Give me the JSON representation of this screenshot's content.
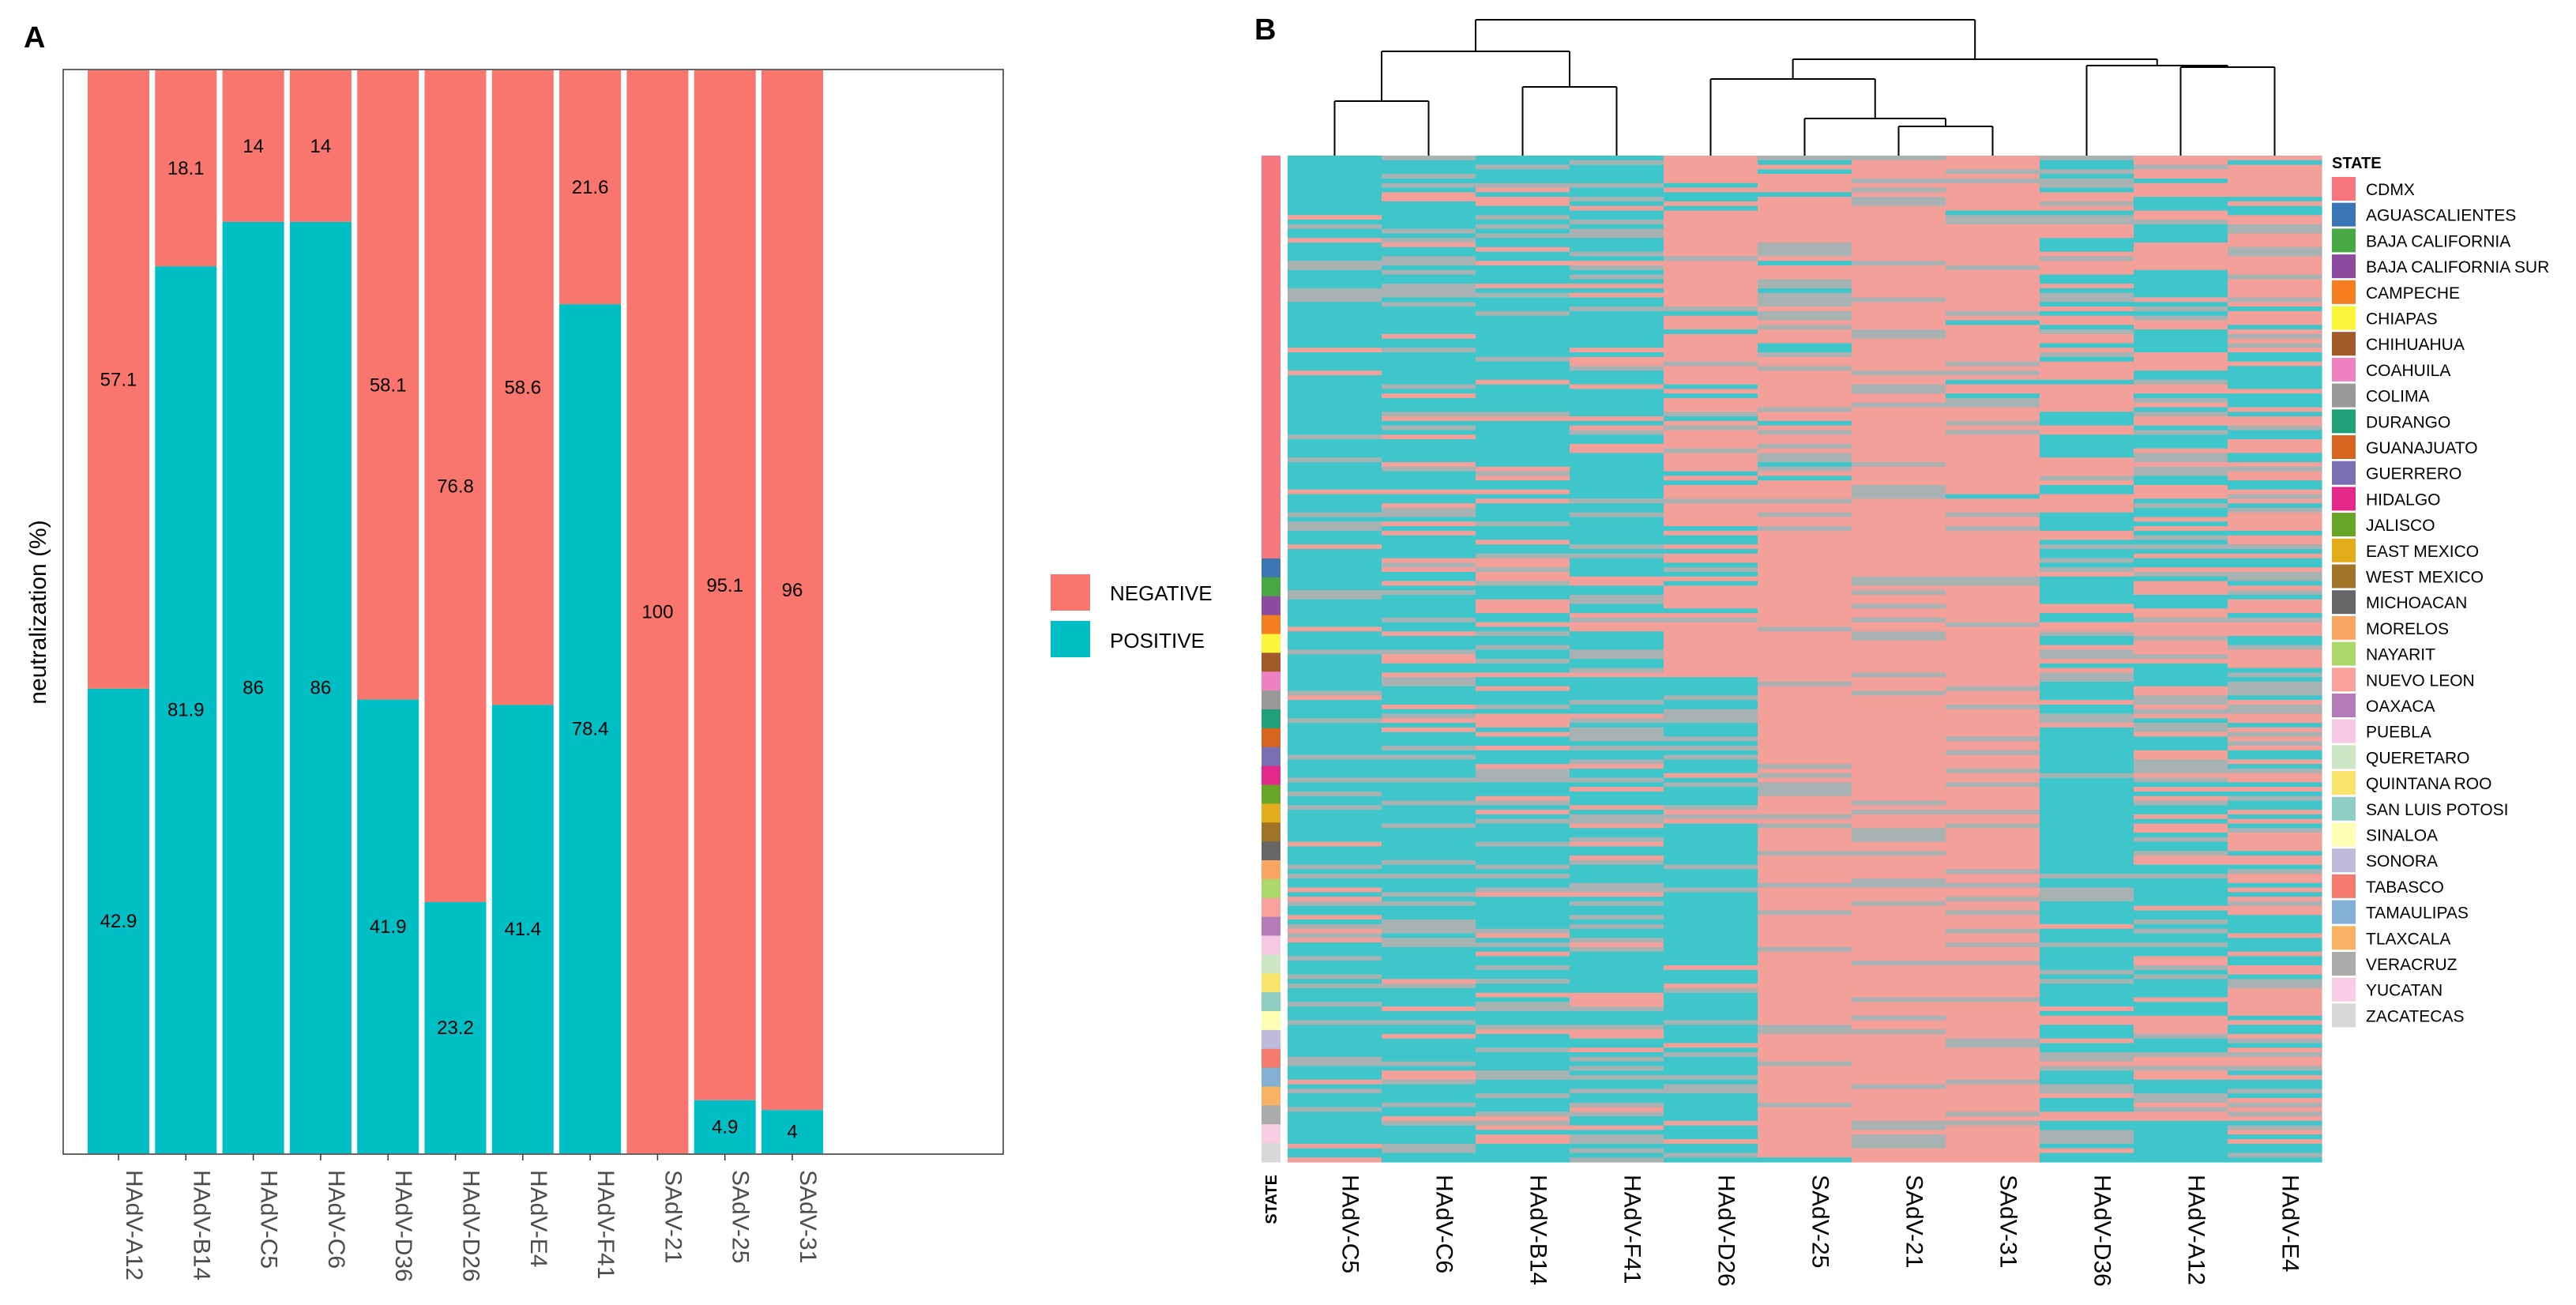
{
  "panel_a_label": "A",
  "panel_b_label": "B",
  "colors": {
    "negative": "#F8766D",
    "positive": "#00BFC4",
    "heat_negative": "#F4A09A",
    "heat_positive": "#3EC6CB",
    "heat_mid": "#A9B2B2"
  },
  "chart_data": [
    {
      "type": "bar",
      "stacked": true,
      "panel": "A",
      "ylabel": "neutralization (%)",
      "xlabel": "",
      "ylim": [
        0,
        100
      ],
      "categories": [
        "HAdV-A12",
        "HAdV-B14",
        "HAdV-C5",
        "HAdV-C6",
        "HAdV-D36",
        "HAdV-D26",
        "HAdV-E4",
        "HAdV-F41",
        "SAdV-21",
        "SAdV-25",
        "SAdV-31"
      ],
      "series": [
        {
          "name": "POSITIVE",
          "values": [
            42.9,
            81.9,
            86,
            86,
            41.9,
            23.2,
            41.4,
            78.4,
            0,
            4.9,
            4
          ]
        },
        {
          "name": "NEGATIVE",
          "values": [
            57.1,
            18.1,
            14,
            14,
            58.1,
            76.8,
            58.6,
            21.6,
            100,
            95.1,
            96
          ]
        }
      ],
      "positive_labels": [
        "42.9",
        "81.9",
        "86",
        "86",
        "41.9",
        "23.2",
        "41.4",
        "78.4",
        "",
        "4.9",
        "4"
      ],
      "negative_labels": [
        "57.1",
        "18.1",
        "14",
        "14",
        "58.1",
        "76.8",
        "58.6",
        "21.6",
        "100",
        "95.1",
        "96"
      ],
      "legend": [
        "NEGATIVE",
        "POSITIVE"
      ]
    },
    {
      "type": "heatmap",
      "panel": "B",
      "columns": [
        "HAdV-C5",
        "HAdV-C6",
        "HAdV-B14",
        "HAdV-F41",
        "HAdV-D26",
        "SAdV-25",
        "SAdV-21",
        "SAdV-31",
        "HAdV-D36",
        "HAdV-A12",
        "HAdV-E4"
      ],
      "row_annotation_label": "STATE",
      "dendrogram": true,
      "legend_title": "STATE",
      "states": [
        {
          "name": "CDMX",
          "color": "#F8777F"
        },
        {
          "name": "AGUASCALIENTES",
          "color": "#3B76B5"
        },
        {
          "name": "BAJA CALIFORNIA",
          "color": "#48A843"
        },
        {
          "name": "BAJA CALIFORNIA SUR",
          "color": "#8C4B9E"
        },
        {
          "name": "CAMPECHE",
          "color": "#F57F20"
        },
        {
          "name": "CHIAPAS",
          "color": "#FCF63A"
        },
        {
          "name": "CHIHUAHUA",
          "color": "#A35A2A"
        },
        {
          "name": "COAHUILA",
          "color": "#EE82C0"
        },
        {
          "name": "COLIMA",
          "color": "#999999"
        },
        {
          "name": "DURANGO",
          "color": "#21A17A"
        },
        {
          "name": "GUANAJUATO",
          "color": "#D8651F"
        },
        {
          "name": "GUERRERO",
          "color": "#7A6FB3"
        },
        {
          "name": "HIDALGO",
          "color": "#E3288A"
        },
        {
          "name": "JALISCO",
          "color": "#67A527"
        },
        {
          "name": "EAST MEXICO",
          "color": "#E3AC1A"
        },
        {
          "name": "WEST MEXICO",
          "color": "#A1742A"
        },
        {
          "name": "MICHOACAN",
          "color": "#666666"
        },
        {
          "name": "MORELOS",
          "color": "#FAA663"
        },
        {
          "name": "NAYARIT",
          "color": "#ACD86A"
        },
        {
          "name": "NUEVO LEON",
          "color": "#F9A29B"
        },
        {
          "name": "OAXACA",
          "color": "#B47BBB"
        },
        {
          "name": "PUEBLA",
          "color": "#F7C8E3"
        },
        {
          "name": "QUERETARO",
          "color": "#CDE6C5"
        },
        {
          "name": "QUINTANA ROO",
          "color": "#F9E36B"
        },
        {
          "name": "SAN LUIS POTOSI",
          "color": "#8ECDC1"
        },
        {
          "name": "SINALOA",
          "color": "#FDFDB4"
        },
        {
          "name": "SONORA",
          "color": "#BEBADA"
        },
        {
          "name": "TABASCO",
          "color": "#F47A6E"
        },
        {
          "name": "TAMAULIPAS",
          "color": "#83B0D4"
        },
        {
          "name": "TLAXCALA",
          "color": "#F8B263"
        },
        {
          "name": "VERACRUZ",
          "color": "#ABABAB"
        },
        {
          "name": "YUCATAN",
          "color": "#F9CDE3"
        },
        {
          "name": "ZACATECAS",
          "color": "#D8D8D8"
        }
      ]
    }
  ]
}
